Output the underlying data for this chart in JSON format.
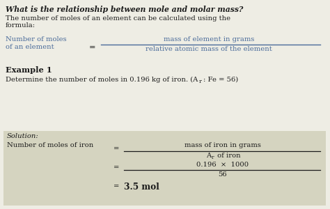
{
  "title_text": "What is the relationship between mole and molar mass?",
  "intro_line1": "The number of moles of an element can be calculated using the",
  "intro_line2": "formula:",
  "formula_left_line1": "Number of moles",
  "formula_left_line2": "of an element",
  "formula_numerator": "mass of element in grams",
  "formula_denominator": "relative atomic mass of the element",
  "example_header": "Example 1",
  "example_line": "Determine the number of moles in 0.196 kg of iron. (A",
  "example_subscript": "r",
  "example_end": ": Fe = 56)",
  "solution_label": "Solution:",
  "sol_left": "Number of moles of iron",
  "sol_num1": "mass of iron in grams",
  "sol_den1_A": "A",
  "sol_den1_r": "r",
  "sol_den1_rest": " of iron",
  "sol_num2": "0.196  ×  1000",
  "sol_den2": "56",
  "sol_final_eq": "=",
  "sol_final_val": "3.5 mol",
  "bg_color": "#eeede4",
  "solution_box_color": "#d5d4c0",
  "text_black": "#1c1c1c",
  "text_blue": "#4a6b9a",
  "font_size_title": 7.8,
  "font_size_body": 7.2,
  "font_size_small": 6.0
}
